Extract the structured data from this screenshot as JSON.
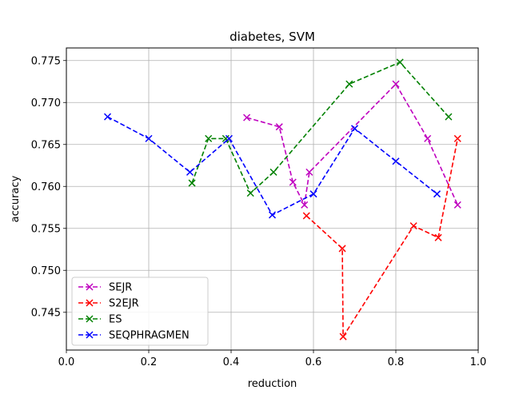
{
  "chart_data": {
    "type": "line",
    "title": "diabetes, SVM",
    "xlabel": "reduction",
    "ylabel": "accuracy",
    "xlim": [
      0.0,
      1.0
    ],
    "ylim": [
      0.7405,
      0.7765
    ],
    "xticks": [
      0.0,
      0.2,
      0.4,
      0.6,
      0.8,
      1.0
    ],
    "xtick_labels": [
      "0.0",
      "0.2",
      "0.4",
      "0.6",
      "0.8",
      "1.0"
    ],
    "yticks": [
      0.745,
      0.75,
      0.755,
      0.76,
      0.765,
      0.77,
      0.775
    ],
    "ytick_labels": [
      "0.745",
      "0.750",
      "0.755",
      "0.760",
      "0.765",
      "0.770",
      "0.775"
    ],
    "grid": true,
    "legend_location": "lower-left",
    "series": [
      {
        "name": "SEJR",
        "color": "#bf00bf",
        "linestyle": "dashed",
        "marker": "x",
        "x": [
          0.438,
          0.517,
          0.55,
          0.578,
          0.59,
          0.8,
          0.877,
          0.95
        ],
        "y": [
          0.7682,
          0.7671,
          0.7605,
          0.7578,
          0.7617,
          0.7722,
          0.7657,
          0.7578
        ]
      },
      {
        "name": "S2EJR",
        "color": "#ff0000",
        "linestyle": "dashed",
        "marker": "x",
        "x": [
          0.583,
          0.67,
          0.672,
          0.843,
          0.903,
          0.95
        ],
        "y": [
          0.7565,
          0.7526,
          0.7421,
          0.7553,
          0.7539,
          0.7657
        ]
      },
      {
        "name": "ES",
        "color": "#008000",
        "linestyle": "dashed",
        "marker": "x",
        "x": [
          0.305,
          0.345,
          0.387,
          0.447,
          0.503,
          0.687,
          0.81,
          0.928
        ],
        "y": [
          0.7604,
          0.7657,
          0.7657,
          0.7592,
          0.7617,
          0.7722,
          0.7748,
          0.7683
        ]
      },
      {
        "name": "SEQPHRAGMEN",
        "color": "#0000ff",
        "linestyle": "dashed",
        "marker": "x",
        "x": [
          0.1,
          0.2,
          0.3,
          0.395,
          0.5,
          0.6,
          0.7,
          0.8,
          0.9
        ],
        "y": [
          0.7683,
          0.7657,
          0.7617,
          0.7657,
          0.7566,
          0.7591,
          0.7669,
          0.763,
          0.7591
        ]
      }
    ]
  }
}
